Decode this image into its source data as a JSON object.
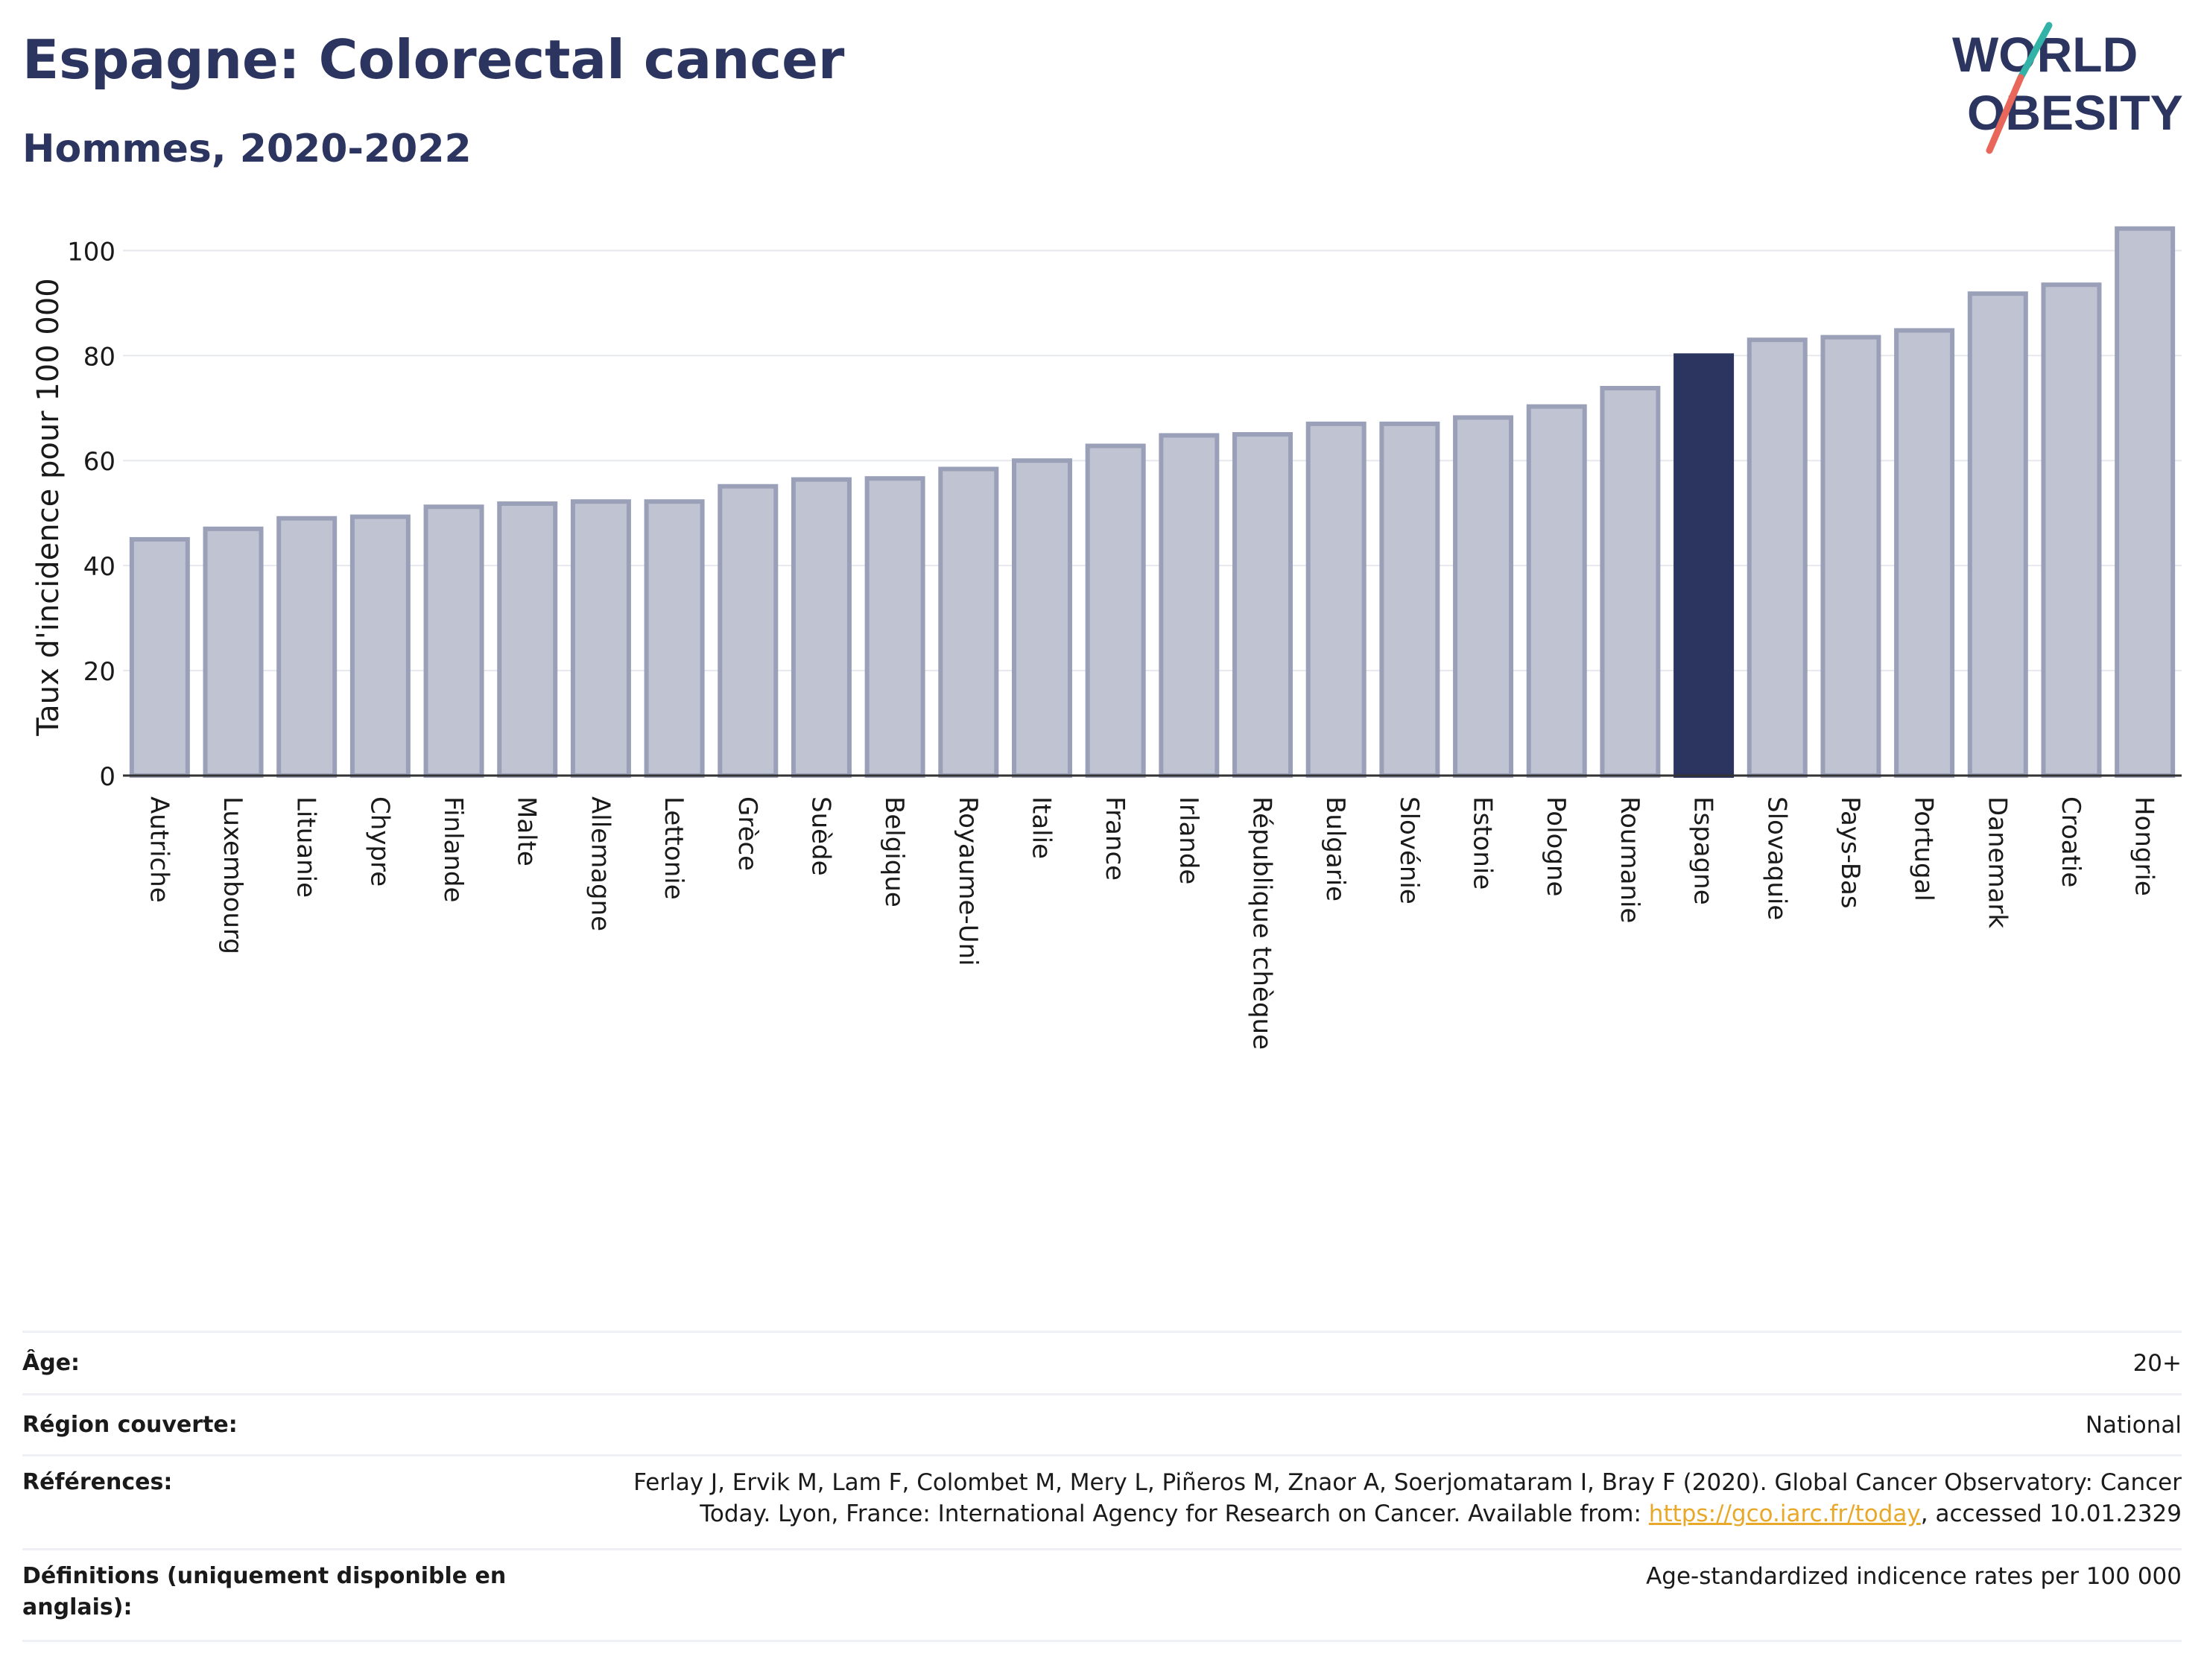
{
  "header": {
    "title": "Espagne: Colorectal cancer",
    "subtitle": "Hommes, 2020-2022"
  },
  "logo": {
    "line1": "WORLD",
    "line2": "OBESITY",
    "accent_teal": "#33b3a8",
    "accent_red": "#e8675a"
  },
  "colors": {
    "highlight": "#2b3560",
    "bar": "#c0c3d1",
    "bar_border": "#9aa0b8",
    "text": "#2b3560"
  },
  "chart_data": {
    "type": "bar",
    "ylabel": "Taux d'incidence pour 100 000",
    "ylim": [
      0,
      108
    ],
    "yticks": [
      0,
      20,
      40,
      60,
      80,
      100
    ],
    "grid": true,
    "highlight": "Espagne",
    "categories": [
      "Autriche",
      "Luxembourg",
      "Lituanie",
      "Chypre",
      "Finlande",
      "Malte",
      "Allemagne",
      "Lettonie",
      "Grèce",
      "Suède",
      "Belgique",
      "Royaume-Uni",
      "Italie",
      "France",
      "Irlande",
      "République tchèque",
      "Bulgarie",
      "Slovénie",
      "Estonie",
      "Pologne",
      "Roumanie",
      "Espagne",
      "Slovaquie",
      "Pays-Bas",
      "Portugal",
      "Danemark",
      "Croatie",
      "Hongrie"
    ],
    "values": [
      45,
      47,
      49,
      49.3,
      51.2,
      51.8,
      52.2,
      52.2,
      55.1,
      56.4,
      56.6,
      58.4,
      60,
      62.8,
      64.8,
      65,
      67,
      67,
      68.2,
      70.3,
      73.8,
      80,
      83,
      83.5,
      84.8,
      91.8,
      93.5,
      104.2
    ]
  },
  "meta": {
    "age_label": "Âge:",
    "age_value": "20+",
    "region_label": "Région couverte:",
    "region_value": "National",
    "refs_label": "Références:",
    "refs_text_1": "Ferlay J, Ervik M, Lam F, Colombet M, Mery L, Piñeros M, Znaor A, Soerjomataram I, Bray F (2020). Global Cancer Observatory: Cancer Today. Lyon, France: International Agency for Research on Cancer. Available from: ",
    "refs_link": "https://gco.iarc.fr/today",
    "refs_text_2": ", accessed 10.01.2329",
    "defs_label": "Définitions (uniquement disponible en anglais):",
    "defs_value": "Age-standardized indicence rates per 100 000"
  }
}
